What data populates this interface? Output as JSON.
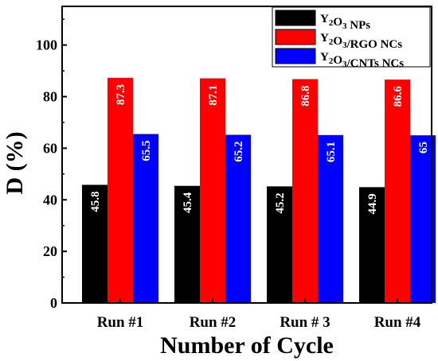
{
  "chart_data": {
    "type": "bar",
    "title": "",
    "xlabel": "Number of Cycle",
    "ylabel": "D (%)",
    "ylim": [
      0,
      115
    ],
    "yticks": [
      0,
      20,
      40,
      60,
      80,
      100
    ],
    "categories": [
      "Run #1",
      "Run #2",
      "Run # 3",
      "Run #4"
    ],
    "series": [
      {
        "name": "Y2O3 NPs",
        "color": "#000000",
        "label_color": "#ffffff",
        "values": [
          45.8,
          45.4,
          45.2,
          44.9
        ],
        "labels": [
          "45.8",
          "45.4",
          "45.2",
          "44.9"
        ]
      },
      {
        "name": "Y2O3/RGO NCs",
        "color": "#ff0000",
        "label_color": "#ffffff",
        "values": [
          87.3,
          87.1,
          86.8,
          86.6
        ],
        "labels": [
          "87.3",
          "87.1",
          "86.8",
          "86.6"
        ]
      },
      {
        "name": "Y2O3/CNTs NCs",
        "color": "#0000ff",
        "label_color": "#ffffff",
        "values": [
          65.5,
          65.2,
          65.1,
          65
        ],
        "labels": [
          "65.5",
          "65.2",
          "65.1",
          "65"
        ]
      }
    ],
    "legend": {
      "placement": "top-right",
      "entries": [
        {
          "pre": "Y",
          "sub1": "2",
          "mid": "O",
          "sub2": "3",
          "post": " NPs"
        },
        {
          "pre": "Y",
          "sub1": "2",
          "mid": "O",
          "sub2": "3",
          "post": "/RGO NCs"
        },
        {
          "pre": "Y",
          "sub1": "2",
          "mid": "O",
          "sub2": "3",
          "post": "/CNTs NCs"
        }
      ]
    },
    "grid": false
  }
}
